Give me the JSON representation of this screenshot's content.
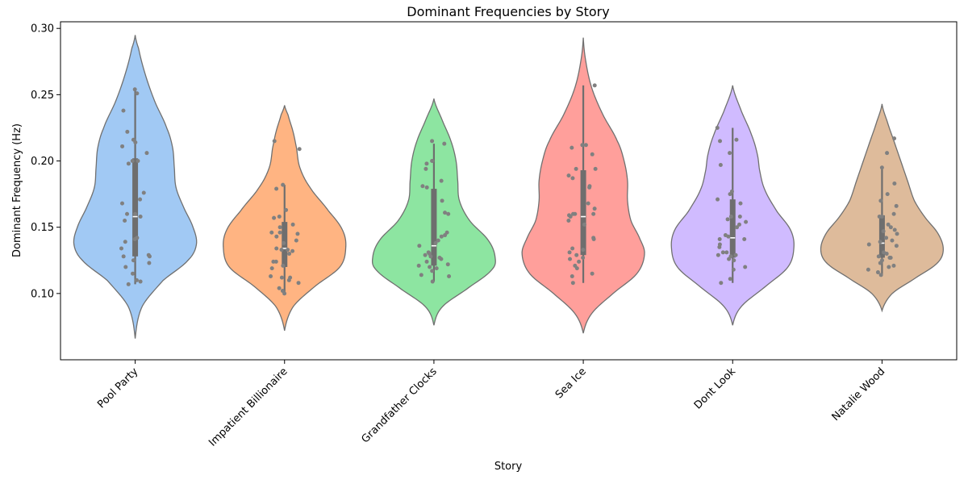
{
  "chart_data": {
    "type": "violin",
    "title": "Dominant Frequencies by Story",
    "xlabel": "Story",
    "ylabel": "Dominant Frequency (Hz)",
    "ylim": [
      0.05,
      0.305
    ],
    "yticks": [
      "0.10",
      "0.15",
      "0.20",
      "0.25",
      "0.30"
    ],
    "ytick_values": [
      0.1,
      0.15,
      0.2,
      0.25,
      0.3
    ],
    "grid": false,
    "legend": "none",
    "categories": [
      "Pool Party",
      "Impatient Billionaire",
      "Grandfather Clocks",
      "Sea Ice",
      "Dont Look",
      "Natalie Wood"
    ],
    "colors": [
      "#a1c9f4",
      "#ffb482",
      "#8de5a1",
      "#ff9f9b",
      "#d0bbff",
      "#debb9b"
    ],
    "point_color": "#808080",
    "series": [
      {
        "values": [
          0.254,
          0.251,
          0.238,
          0.222,
          0.216,
          0.214,
          0.211,
          0.206,
          0.2,
          0.2,
          0.198,
          0.176,
          0.171,
          0.168,
          0.16,
          0.16,
          0.158,
          0.155,
          0.142,
          0.141,
          0.139,
          0.134,
          0.129,
          0.128,
          0.128,
          0.125,
          0.123,
          0.12,
          0.115,
          0.11,
          0.109,
          0.107
        ],
        "whisker": [
          0.107,
          0.254
        ],
        "q1": 0.128,
        "median": 0.158,
        "q3": 0.202,
        "kde": {
          "ymin": 0.066,
          "ymax": 0.295,
          "peak": 0.14,
          "shape": [
            [
              0.066,
              0
            ],
            [
              0.09,
              0.08
            ],
            [
              0.11,
              0.33
            ],
            [
              0.125,
              0.62
            ],
            [
              0.137,
              0.72
            ],
            [
              0.15,
              0.68
            ],
            [
              0.165,
              0.57
            ],
            [
              0.18,
              0.48
            ],
            [
              0.195,
              0.46
            ],
            [
              0.21,
              0.44
            ],
            [
              0.225,
              0.37
            ],
            [
              0.245,
              0.23
            ],
            [
              0.265,
              0.12
            ],
            [
              0.285,
              0.04
            ],
            [
              0.295,
              0
            ]
          ]
        }
      },
      {
        "values": [
          0.215,
          0.209,
          0.182,
          0.179,
          0.163,
          0.158,
          0.157,
          0.152,
          0.15,
          0.146,
          0.146,
          0.145,
          0.143,
          0.14,
          0.138,
          0.134,
          0.133,
          0.133,
          0.132,
          0.13,
          0.124,
          0.124,
          0.121,
          0.119,
          0.113,
          0.112,
          0.112,
          0.11,
          0.108,
          0.104,
          0.102,
          0.1
        ],
        "whisker": [
          0.1,
          0.182
        ],
        "q1": 0.12,
        "median": 0.134,
        "q3": 0.154,
        "kde": {
          "ymin": 0.072,
          "ymax": 0.242,
          "peak": 0.135,
          "shape": [
            [
              0.072,
              0
            ],
            [
              0.09,
              0.1
            ],
            [
              0.105,
              0.35
            ],
            [
              0.12,
              0.65
            ],
            [
              0.135,
              0.72
            ],
            [
              0.148,
              0.68
            ],
            [
              0.162,
              0.52
            ],
            [
              0.18,
              0.3
            ],
            [
              0.195,
              0.18
            ],
            [
              0.21,
              0.14
            ],
            [
              0.222,
              0.1
            ],
            [
              0.235,
              0.04
            ],
            [
              0.242,
              0
            ]
          ]
        }
      },
      {
        "values": [
          0.215,
          0.213,
          0.2,
          0.2,
          0.198,
          0.194,
          0.185,
          0.181,
          0.18,
          0.17,
          0.161,
          0.16,
          0.146,
          0.144,
          0.143,
          0.14,
          0.138,
          0.136,
          0.131,
          0.13,
          0.129,
          0.128,
          0.127,
          0.126,
          0.124,
          0.122,
          0.121,
          0.12,
          0.119,
          0.117,
          0.114,
          0.113,
          0.109
        ],
        "whisker": [
          0.109,
          0.213
        ],
        "q1": 0.121,
        "median": 0.136,
        "q3": 0.179,
        "kde": {
          "ymin": 0.076,
          "ymax": 0.247,
          "peak": 0.127,
          "shape": [
            [
              0.076,
              0
            ],
            [
              0.09,
              0.1
            ],
            [
              0.105,
              0.42
            ],
            [
              0.118,
              0.68
            ],
            [
              0.127,
              0.72
            ],
            [
              0.14,
              0.64
            ],
            [
              0.155,
              0.42
            ],
            [
              0.17,
              0.3
            ],
            [
              0.185,
              0.28
            ],
            [
              0.2,
              0.26
            ],
            [
              0.215,
              0.2
            ],
            [
              0.232,
              0.09
            ],
            [
              0.247,
              0
            ]
          ]
        }
      },
      {
        "values": [
          0.257,
          0.212,
          0.212,
          0.21,
          0.205,
          0.194,
          0.194,
          0.189,
          0.187,
          0.181,
          0.18,
          0.168,
          0.164,
          0.16,
          0.16,
          0.16,
          0.159,
          0.158,
          0.155,
          0.152,
          0.142,
          0.141,
          0.134,
          0.133,
          0.131,
          0.129,
          0.127,
          0.126,
          0.124,
          0.121,
          0.119,
          0.115,
          0.113,
          0.108
        ],
        "whisker": [
          0.108,
          0.257
        ],
        "q1": 0.129,
        "median": 0.158,
        "q3": 0.193,
        "kde": {
          "ymin": 0.07,
          "ymax": 0.293,
          "peak": 0.13,
          "shape": [
            [
              0.07,
              0
            ],
            [
              0.085,
              0.1
            ],
            [
              0.1,
              0.35
            ],
            [
              0.115,
              0.63
            ],
            [
              0.13,
              0.72
            ],
            [
              0.142,
              0.66
            ],
            [
              0.155,
              0.56
            ],
            [
              0.17,
              0.52
            ],
            [
              0.185,
              0.52
            ],
            [
              0.2,
              0.48
            ],
            [
              0.215,
              0.4
            ],
            [
              0.235,
              0.23
            ],
            [
              0.255,
              0.1
            ],
            [
              0.275,
              0.03
            ],
            [
              0.293,
              0
            ]
          ]
        }
      },
      {
        "values": [
          0.225,
          0.216,
          0.215,
          0.206,
          0.197,
          0.177,
          0.175,
          0.171,
          0.168,
          0.158,
          0.158,
          0.156,
          0.154,
          0.152,
          0.15,
          0.144,
          0.143,
          0.141,
          0.141,
          0.137,
          0.135,
          0.131,
          0.131,
          0.129,
          0.129,
          0.128,
          0.126,
          0.125,
          0.12,
          0.118,
          0.111,
          0.108
        ],
        "whisker": [
          0.108,
          0.225
        ],
        "q1": 0.127,
        "median": 0.142,
        "q3": 0.171,
        "kde": {
          "ymin": 0.076,
          "ymax": 0.257,
          "peak": 0.135,
          "shape": [
            [
              0.076,
              0
            ],
            [
              0.09,
              0.1
            ],
            [
              0.105,
              0.38
            ],
            [
              0.12,
              0.65
            ],
            [
              0.135,
              0.72
            ],
            [
              0.148,
              0.68
            ],
            [
              0.162,
              0.52
            ],
            [
              0.178,
              0.38
            ],
            [
              0.192,
              0.32
            ],
            [
              0.205,
              0.29
            ],
            [
              0.22,
              0.22
            ],
            [
              0.238,
              0.1
            ],
            [
              0.257,
              0
            ]
          ]
        }
      },
      {
        "values": [
          0.217,
          0.206,
          0.195,
          0.183,
          0.175,
          0.17,
          0.166,
          0.16,
          0.158,
          0.158,
          0.152,
          0.15,
          0.148,
          0.147,
          0.145,
          0.142,
          0.14,
          0.139,
          0.137,
          0.136,
          0.131,
          0.13,
          0.128,
          0.127,
          0.127,
          0.125,
          0.123,
          0.121,
          0.12,
          0.118,
          0.116,
          0.114
        ],
        "whisker": [
          0.114,
          0.195
        ],
        "q1": 0.127,
        "median": 0.138,
        "q3": 0.159,
        "kde": {
          "ymin": 0.087,
          "ymax": 0.243,
          "peak": 0.133,
          "shape": [
            [
              0.087,
              0
            ],
            [
              0.1,
              0.12
            ],
            [
              0.112,
              0.4
            ],
            [
              0.123,
              0.65
            ],
            [
              0.133,
              0.72
            ],
            [
              0.145,
              0.66
            ],
            [
              0.158,
              0.5
            ],
            [
              0.17,
              0.38
            ],
            [
              0.185,
              0.3
            ],
            [
              0.2,
              0.22
            ],
            [
              0.215,
              0.14
            ],
            [
              0.23,
              0.06
            ],
            [
              0.243,
              0
            ]
          ]
        }
      }
    ]
  }
}
